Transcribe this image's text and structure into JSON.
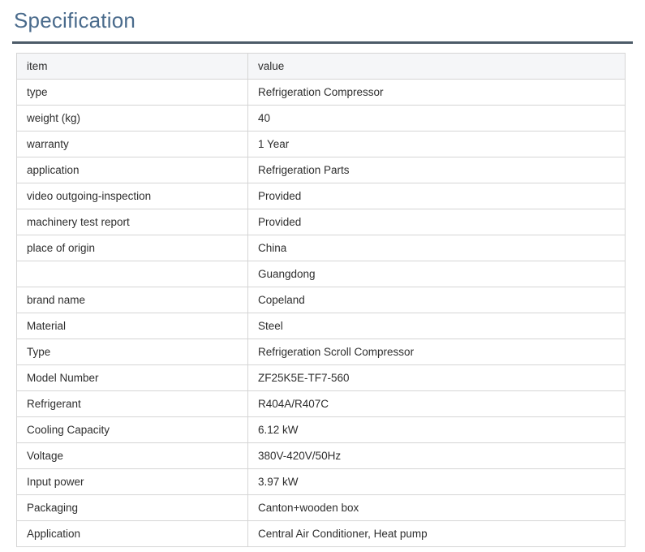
{
  "page": {
    "title": "Specification"
  },
  "colors": {
    "title_text": "#4a6b8c",
    "title_rule": "#4c5b68",
    "table_border": "#d5d5d5",
    "header_background": "#f5f6f8",
    "cell_text": "#2e2e2e"
  },
  "table": {
    "headers": [
      "item",
      "value"
    ],
    "rows": [
      {
        "item": "type",
        "value": "Refrigeration Compressor"
      },
      {
        "item": "weight (kg)",
        "value": "40"
      },
      {
        "item": "warranty",
        "value": "1 Year"
      },
      {
        "item": "application",
        "value": "Refrigeration Parts"
      },
      {
        "item": "video outgoing-inspection",
        "value": "Provided"
      },
      {
        "item": "machinery test report",
        "value": "Provided"
      },
      {
        "item": "place of origin",
        "value": "China"
      },
      {
        "item": "",
        "value": "Guangdong"
      },
      {
        "item": "brand name",
        "value": "Copeland"
      },
      {
        "item": "Material",
        "value": "Steel"
      },
      {
        "item": "Type",
        "value": "Refrigeration Scroll Compressor"
      },
      {
        "item": "Model Number",
        "value": "ZF25K5E-TF7-560"
      },
      {
        "item": "Refrigerant",
        "value": "R404A/R407C"
      },
      {
        "item": "Cooling Capacity",
        "value": "6.12 kW"
      },
      {
        "item": "Voltage",
        "value": "380V-420V/50Hz"
      },
      {
        "item": "Input power",
        "value": "3.97 kW"
      },
      {
        "item": "Packaging",
        "value": "Canton+wooden box"
      },
      {
        "item": "Application",
        "value": "Central Air Conditioner, Heat pump"
      }
    ]
  }
}
